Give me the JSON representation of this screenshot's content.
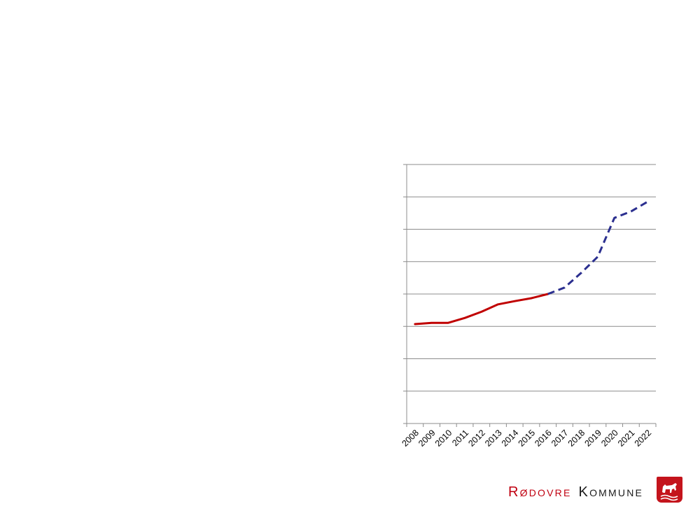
{
  "chart_data": {
    "type": "line",
    "title": "",
    "xlabel": "",
    "ylabel": "",
    "categories": [
      "2008",
      "2009",
      "2010",
      "2011",
      "2012",
      "2013",
      "2014",
      "2015",
      "2016",
      "2017",
      "2018",
      "2019",
      "2020",
      "2021",
      "2022"
    ],
    "ylim": [
      0,
      8
    ],
    "grid": true,
    "series": [
      {
        "style": "solid",
        "color": "#c00000",
        "values": [
          3.07,
          3.11,
          3.11,
          3.26,
          3.45,
          3.68,
          3.78,
          3.87,
          4.0,
          null,
          null,
          null,
          null,
          null,
          null
        ]
      },
      {
        "style": "dashed",
        "color": "#2b2f8f",
        "values": [
          null,
          null,
          null,
          null,
          null,
          null,
          null,
          null,
          4.0,
          4.2,
          4.65,
          5.15,
          6.35,
          6.55,
          6.85
        ]
      }
    ]
  },
  "footer": {
    "brand_word1": "Rødovre",
    "brand_word2": "Kommune",
    "seal_icon": "rodovre-seal-icon"
  }
}
